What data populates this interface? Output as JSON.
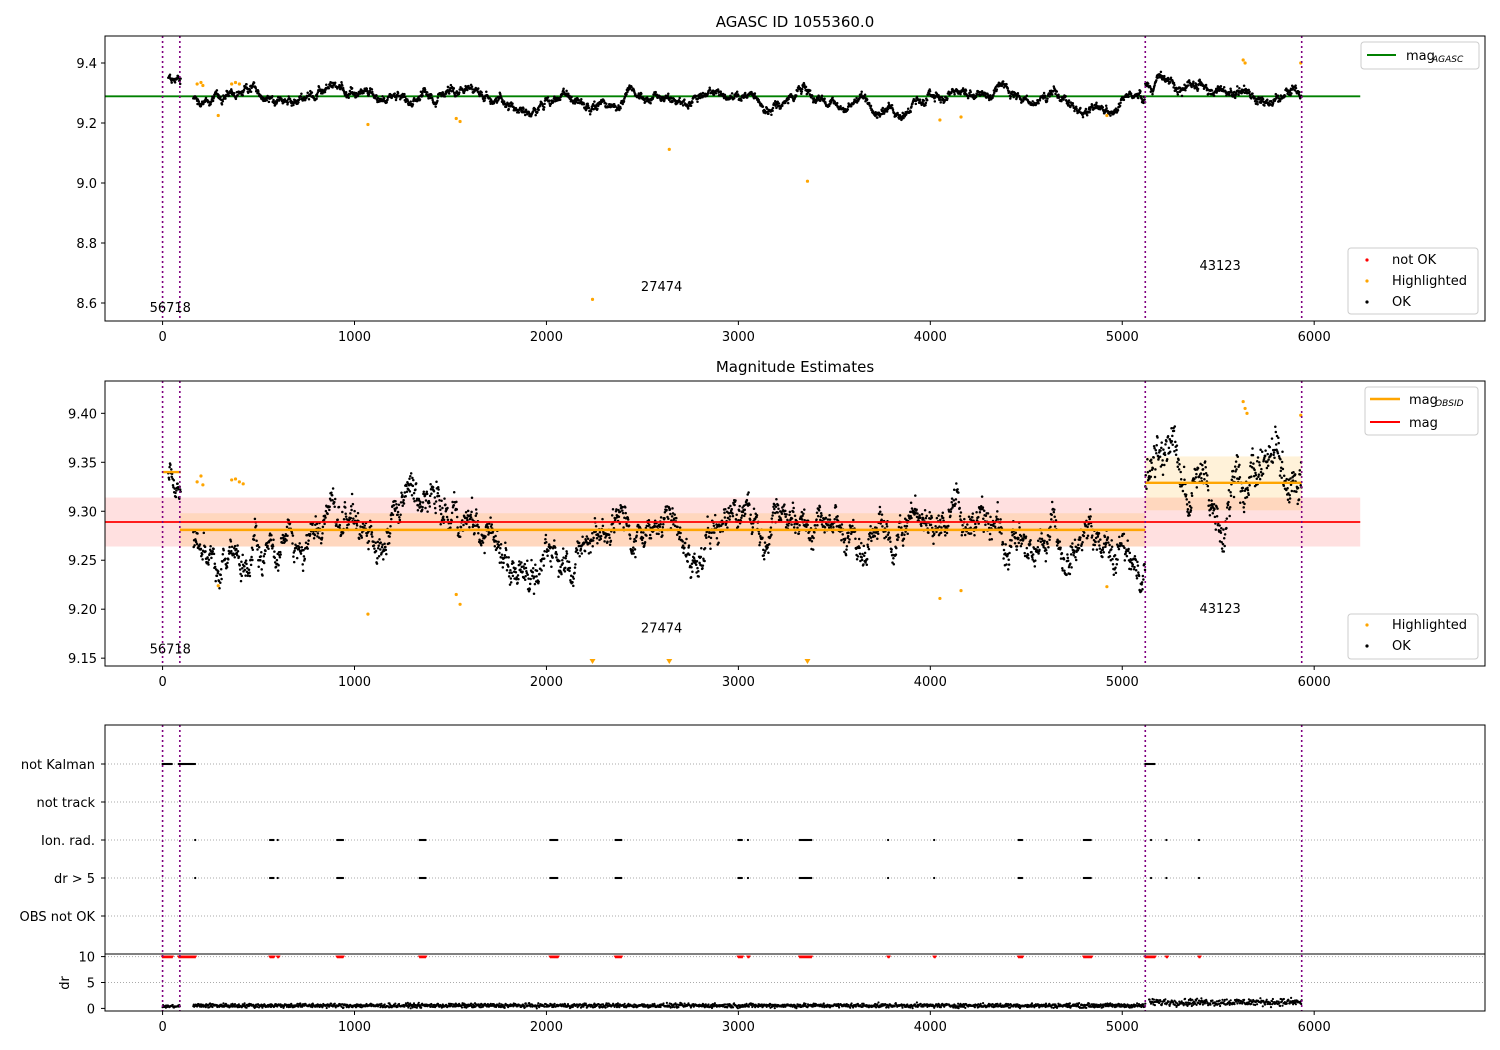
{
  "chart_data": [
    {
      "type": "scatter",
      "title": "AGASC ID 1055360.0",
      "xlim": [
        -300,
        6890
      ],
      "ylim": [
        8.54,
        9.49
      ],
      "xticks": [
        0,
        1000,
        2000,
        3000,
        4000,
        5000,
        6000
      ],
      "yticks": [
        8.6,
        8.8,
        9.0,
        9.2,
        9.4
      ],
      "ytick_labels": [
        "8.6",
        "8.8",
        "9.0",
        "9.2",
        "9.4"
      ],
      "observations": [
        {
          "obsid": "56718",
          "start": 0,
          "end": 90,
          "label_x": 40,
          "label_y": 8.57
        },
        {
          "obsid": "27474",
          "start": 90,
          "end": 5120,
          "label_x": 2600,
          "label_y": 8.64
        },
        {
          "obsid": "43123",
          "start": 5120,
          "end": 5935,
          "label_x": 5510,
          "label_y": 8.71
        }
      ],
      "mag_agasc": {
        "value": 9.289,
        "x_range": [
          -300,
          6240
        ],
        "color": "#008000"
      },
      "ok_series": {
        "name": "OK",
        "color": "#000000",
        "segments": [
          {
            "x_start": 30,
            "x_end": 95,
            "base": 9.345,
            "noise": 0.012
          },
          {
            "x_start": 160,
            "x_end": 5120,
            "base": 9.283,
            "noise": 0.012
          },
          {
            "x_start": 5120,
            "x_end": 5935,
            "base": 9.328,
            "noise": 0.018
          }
        ]
      },
      "highlighted": {
        "name": "Highlighted",
        "color": "#ffa500",
        "points": [
          [
            180,
            9.33
          ],
          [
            200,
            9.335
          ],
          [
            210,
            9.325
          ],
          [
            290,
            9.225
          ],
          [
            360,
            9.33
          ],
          [
            380,
            9.335
          ],
          [
            400,
            9.33
          ],
          [
            1070,
            9.195
          ],
          [
            1530,
            9.215
          ],
          [
            1550,
            9.205
          ],
          [
            2240,
            8.612
          ],
          [
            2640,
            9.112
          ],
          [
            3360,
            9.006
          ],
          [
            4050,
            9.21
          ],
          [
            4160,
            9.22
          ],
          [
            4920,
            9.225
          ],
          [
            5630,
            9.41
          ],
          [
            5640,
            9.4
          ],
          [
            5930,
            9.4
          ]
        ]
      },
      "not_ok": {
        "name": "not OK",
        "color": "#ff0000"
      },
      "legend_top": [
        "mag_AGASC"
      ],
      "legend_bottom": [
        "not OK",
        "Highlighted",
        "OK"
      ]
    },
    {
      "type": "scatter",
      "title": "Magnitude Estimates",
      "xlim": [
        -300,
        6890
      ],
      "ylim": [
        9.142,
        9.433
      ],
      "xticks": [
        0,
        1000,
        2000,
        3000,
        4000,
        5000,
        6000
      ],
      "yticks": [
        9.15,
        9.2,
        9.25,
        9.3,
        9.35,
        9.4
      ],
      "ytick_labels": [
        "9.15",
        "9.20",
        "9.25",
        "9.30",
        "9.35",
        "9.40"
      ],
      "observations": [
        {
          "obsid": "56718",
          "start": 0,
          "end": 90,
          "label_x": 40,
          "label_y": 9.155
        },
        {
          "obsid": "27474",
          "start": 90,
          "end": 5120,
          "label_x": 2600,
          "label_y": 9.176
        },
        {
          "obsid": "43123",
          "start": 5120,
          "end": 5935,
          "label_x": 5510,
          "label_y": 9.196
        }
      ],
      "mag": {
        "value": 9.289,
        "band": [
          9.264,
          9.314
        ],
        "x_range": [
          -300,
          6240
        ],
        "color": "#ff0000"
      },
      "mag_obsid": [
        {
          "x_start": 0,
          "x_end": 95,
          "value": 9.34
        },
        {
          "x_start": 90,
          "x_end": 5120,
          "value": 9.281,
          "band": [
            9.264,
            9.298
          ]
        },
        {
          "x_start": 5120,
          "x_end": 5935,
          "value": 9.329,
          "band": [
            9.301,
            9.356
          ]
        }
      ],
      "ok_series": {
        "name": "OK",
        "color": "#000000",
        "segments": [
          {
            "x_start": 30,
            "x_end": 95,
            "base": 9.34,
            "noise": 0.012
          },
          {
            "x_start": 160,
            "x_end": 5120,
            "base": 9.281,
            "noise": 0.014
          },
          {
            "x_start": 5120,
            "x_end": 5935,
            "base": 9.328,
            "noise": 0.022
          }
        ]
      },
      "highlighted": {
        "name": "Highlighted",
        "color": "#ffa500",
        "points": [
          [
            180,
            9.33
          ],
          [
            200,
            9.336
          ],
          [
            210,
            9.327
          ],
          [
            290,
            9.224
          ],
          [
            360,
            9.332
          ],
          [
            380,
            9.333
          ],
          [
            400,
            9.33
          ],
          [
            420,
            9.328
          ],
          [
            1070,
            9.195
          ],
          [
            1530,
            9.215
          ],
          [
            1550,
            9.205
          ],
          [
            4050,
            9.211
          ],
          [
            4160,
            9.219
          ],
          [
            4920,
            9.223
          ],
          [
            5630,
            9.412
          ],
          [
            5640,
            9.405
          ],
          [
            5650,
            9.4
          ],
          [
            5930,
            9.398
          ]
        ],
        "clipped_x": [
          2240,
          2640,
          3360
        ]
      },
      "legend_top": [
        "mag_OBSID",
        "mag"
      ],
      "legend_bottom": [
        "Highlighted",
        "OK"
      ]
    },
    {
      "type": "scatter",
      "title": "",
      "xlim": [
        -300,
        6890
      ],
      "xticks": [
        0,
        1000,
        2000,
        3000,
        4000,
        5000,
        6000
      ],
      "flag_rows": [
        "not Kalman",
        "not track",
        "Ion. rad.",
        "dr > 5",
        "OBS not OK"
      ],
      "flag_events": {
        "not Kalman": [
          [
            0,
            50
          ],
          [
            85,
            170
          ],
          [
            5120,
            5170
          ]
        ],
        "not track": [],
        "Ion. rad.": [
          [
            170,
            175
          ],
          [
            560,
            580
          ],
          [
            600,
            605
          ],
          [
            910,
            940
          ],
          [
            1340,
            1370
          ],
          [
            2020,
            2060
          ],
          [
            2360,
            2390
          ],
          [
            3000,
            3020
          ],
          [
            3050,
            3055
          ],
          [
            3320,
            3380
          ],
          [
            3780,
            3785
          ],
          [
            4020,
            4025
          ],
          [
            4460,
            4480
          ],
          [
            4800,
            4840
          ],
          [
            5150,
            5155
          ],
          [
            5230,
            5235
          ],
          [
            5400,
            5405
          ]
        ],
        "dr > 5": [
          [
            170,
            175
          ],
          [
            560,
            580
          ],
          [
            600,
            605
          ],
          [
            910,
            940
          ],
          [
            1340,
            1370
          ],
          [
            2020,
            2060
          ],
          [
            2360,
            2390
          ],
          [
            3000,
            3020
          ],
          [
            3050,
            3055
          ],
          [
            3320,
            3380
          ],
          [
            3780,
            3785
          ],
          [
            4020,
            4025
          ],
          [
            4460,
            4480
          ],
          [
            4800,
            4840
          ],
          [
            5150,
            5155
          ],
          [
            5230,
            5235
          ],
          [
            5400,
            5405
          ]
        ],
        "OBS not OK": []
      },
      "dr": {
        "ylabel": "dr",
        "yticks": [
          0,
          5,
          10
        ],
        "ytick_labels": [
          "0",
          "5",
          "10"
        ],
        "ylim": [
          -0.5,
          10.5
        ],
        "clipped_color": "#ff0000",
        "clipped_x": [
          [
            0,
            50
          ],
          [
            85,
            170
          ],
          [
            560,
            580
          ],
          [
            600,
            605
          ],
          [
            910,
            940
          ],
          [
            1340,
            1370
          ],
          [
            2020,
            2060
          ],
          [
            2360,
            2390
          ],
          [
            3000,
            3020
          ],
          [
            3050,
            3055
          ],
          [
            3320,
            3380
          ],
          [
            3780,
            3785
          ],
          [
            4020,
            4025
          ],
          [
            4460,
            4480
          ],
          [
            4800,
            4840
          ],
          [
            5120,
            5170
          ],
          [
            5230,
            5235
          ],
          [
            5400,
            5405
          ]
        ]
      },
      "observation_boundaries": [
        0,
        90,
        5120,
        5935
      ]
    }
  ]
}
